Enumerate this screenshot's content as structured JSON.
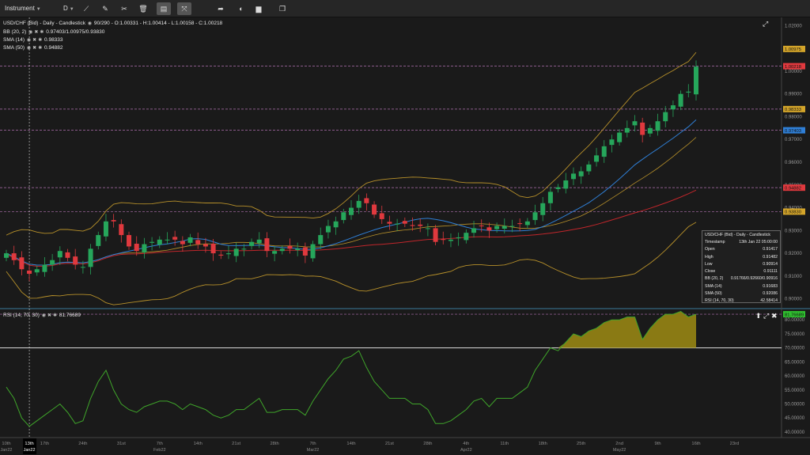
{
  "toolbar": {
    "instrument_label": "Instrument",
    "period_label": "D",
    "buttons": [
      {
        "name": "draw-line-tool-button",
        "glyph": "⟋"
      },
      {
        "name": "pencil-tool-button",
        "glyph": "✎"
      },
      {
        "name": "crosshair-tool-button",
        "glyph": "✂"
      },
      {
        "name": "delete-tool-button",
        "glyph": "🗑"
      },
      {
        "name": "layout-toggle-button",
        "glyph": "▤"
      },
      {
        "name": "expand-tool-button",
        "glyph": "⤧"
      },
      {
        "name": "share-button",
        "glyph": "➦"
      },
      {
        "name": "theme-button",
        "glyph": "◐"
      },
      {
        "name": "language-button",
        "glyph": "▆"
      },
      {
        "name": "window-button",
        "glyph": "❐"
      }
    ]
  },
  "legend": {
    "main": "USD/CHF (Bid) - Daily - Candlestick",
    "counter": "90/290",
    "ohlc": "O:1.00331 - H:1.00414 - L:1.00158 - C:1.00218",
    "bb_label": "BB (20, 2)",
    "bb_value": "0.97403/1.00975/0.93830",
    "sma14_label": "SMA (14)",
    "sma14_value": "0.98333",
    "sma50_label": "SMA (50)",
    "sma50_value": "0.94882",
    "rsi_label": "RSI (14, 70, 30)",
    "rsi_value": "81.76689"
  },
  "colors": {
    "background": "#1a1a1a",
    "bull": "#26a65b",
    "bear": "#e0393e",
    "bb": "#b8912a",
    "sma14": "#2f7fd6",
    "sma50": "#c0262b",
    "rsi": "#3fa52a",
    "rsi_fill": "#8a7a14",
    "grid_dashed": "#b070b0"
  },
  "tooltip": {
    "title": "USD/CHF (Bid) - Daily - Candlestick",
    "rows": [
      {
        "k": "Timestamp",
        "v": "13th Jan 22 05:00:00"
      },
      {
        "k": "Open",
        "v": "0.91417"
      },
      {
        "k": "High",
        "v": "0.91482"
      },
      {
        "k": "Low",
        "v": "0.90914"
      },
      {
        "k": "Close",
        "v": "0.91111"
      },
      {
        "k": "BB (20, 2)",
        "v": "0.91766/0.92660/0.90916"
      },
      {
        "k": "SMA (14)",
        "v": "0.91683"
      },
      {
        "k": "SMA (50)",
        "v": "0.92086"
      },
      {
        "k": "RSI (14, 70, 30)",
        "v": "42.58414"
      }
    ]
  },
  "chart_data": {
    "type": "candlestick",
    "ylim": [
      0.8957,
      1.0236
    ],
    "y_ticks": [
      "1.02000",
      "1.01000",
      "1.00000",
      "0.99000",
      "0.98000",
      "0.97000",
      "0.96000",
      "0.95000",
      "0.94000",
      "0.93000",
      "0.92000",
      "0.91000",
      "0.90000"
    ],
    "y_tick_values": [
      1.02,
      1.01,
      1.0,
      0.99,
      0.98,
      0.97,
      0.96,
      0.95,
      0.94,
      0.93,
      0.92,
      0.91,
      0.9
    ],
    "price_labels": [
      {
        "text": "1.00975",
        "value": 1.00975,
        "color": "#d4a52a"
      },
      {
        "text": "1.00218",
        "value": 1.00218,
        "color": "#e0393e"
      },
      {
        "text": "0.98333",
        "value": 0.98333,
        "color": "#d4a52a"
      },
      {
        "text": "0.97403",
        "value": 0.97403,
        "color": "#2f7fd6"
      },
      {
        "text": "0.94882",
        "value": 0.94882,
        "color": "#e0393e"
      },
      {
        "text": "0.93830",
        "value": 0.9383,
        "color": "#d4a52a"
      }
    ],
    "hlines": [
      1.00218,
      0.98333,
      0.97403,
      0.94882,
      0.9383
    ],
    "x_labels": [
      {
        "text": "10th",
        "sub": "Jan22",
        "i": 0
      },
      {
        "text": "13th",
        "sub": "Jan22",
        "i": 3,
        "highlight": true
      },
      {
        "text": "17th",
        "sub": "",
        "i": 5
      },
      {
        "text": "24th",
        "sub": "",
        "i": 10
      },
      {
        "text": "31st",
        "sub": "",
        "i": 15
      },
      {
        "text": "7th",
        "sub": "Feb22",
        "i": 20
      },
      {
        "text": "14th",
        "sub": "",
        "i": 25
      },
      {
        "text": "21st",
        "sub": "",
        "i": 30
      },
      {
        "text": "28th",
        "sub": "",
        "i": 35
      },
      {
        "text": "7th",
        "sub": "Mar22",
        "i": 40
      },
      {
        "text": "14th",
        "sub": "",
        "i": 45
      },
      {
        "text": "21st",
        "sub": "",
        "i": 50
      },
      {
        "text": "28th",
        "sub": "",
        "i": 55
      },
      {
        "text": "4th",
        "sub": "Apr22",
        "i": 60
      },
      {
        "text": "11th",
        "sub": "",
        "i": 65
      },
      {
        "text": "18th",
        "sub": "",
        "i": 70
      },
      {
        "text": "25th",
        "sub": "",
        "i": 75
      },
      {
        "text": "2nd",
        "sub": "May22",
        "i": 80
      },
      {
        "text": "9th",
        "sub": "",
        "i": 85
      },
      {
        "text": "16th",
        "sub": "",
        "i": 90
      },
      {
        "text": "23rd",
        "sub": "",
        "i": 95
      }
    ],
    "close": [
      0.92,
      0.917,
      0.913,
      0.911,
      0.913,
      0.915,
      0.917,
      0.921,
      0.918,
      0.915,
      0.914,
      0.922,
      0.928,
      0.934,
      0.934,
      0.928,
      0.923,
      0.921,
      0.924,
      0.925,
      0.926,
      0.926,
      0.926,
      0.924,
      0.927,
      0.924,
      0.923,
      0.92,
      0.919,
      0.92,
      0.922,
      0.922,
      0.925,
      0.926,
      0.921,
      0.921,
      0.922,
      0.922,
      0.922,
      0.919,
      0.924,
      0.928,
      0.932,
      0.934,
      0.938,
      0.94,
      0.943,
      0.942,
      0.937,
      0.935,
      0.933,
      0.933,
      0.933,
      0.932,
      0.932,
      0.931,
      0.925,
      0.926,
      0.926,
      0.927,
      0.929,
      0.931,
      0.932,
      0.93,
      0.932,
      0.932,
      0.932,
      0.933,
      0.934,
      0.938,
      0.942,
      0.947,
      0.949,
      0.952,
      0.955,
      0.956,
      0.959,
      0.963,
      0.967,
      0.97,
      0.973,
      0.975,
      0.978,
      0.972,
      0.975,
      0.978,
      0.982,
      0.985,
      0.99,
      0.991,
      1.002
    ]
  },
  "rsi_data": {
    "ylim": [
      38,
      84
    ],
    "y_ticks": [
      "80.00000",
      "75.00000",
      "70.00000",
      "65.00000",
      "60.00000",
      "55.00000",
      "50.00000",
      "45.00000",
      "40.00000"
    ],
    "y_tick_values": [
      80,
      75,
      70,
      65,
      60,
      55,
      50,
      45,
      40
    ],
    "value_label": "81.76689",
    "values": [
      56,
      52,
      45,
      42,
      44,
      46,
      48,
      50,
      47,
      43,
      44,
      52,
      58,
      62,
      55,
      50,
      48,
      47,
      49,
      50,
      51,
      51,
      50,
      48,
      50,
      49,
      48,
      46,
      45,
      46,
      48,
      48,
      50,
      52,
      47,
      47,
      48,
      48,
      48,
      46,
      51,
      55,
      59,
      62,
      66,
      67,
      69,
      63,
      58,
      55,
      52,
      52,
      52,
      50,
      50,
      48,
      43,
      43,
      44,
      46,
      48,
      51,
      52,
      49,
      52,
      52,
      52,
      54,
      56,
      62,
      66,
      70,
      69,
      72,
      75,
      74,
      76,
      77,
      79,
      80,
      80,
      81,
      81,
      73,
      77,
      80,
      82,
      82,
      83,
      81,
      82
    ]
  }
}
